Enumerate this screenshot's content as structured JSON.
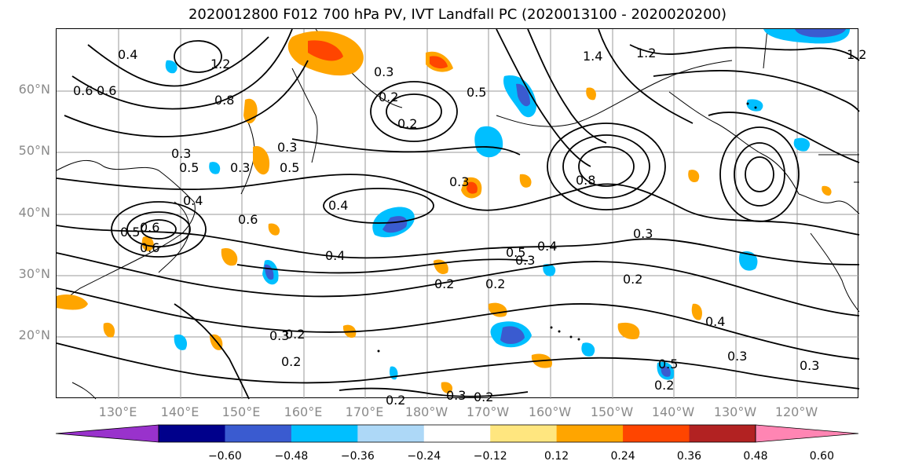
{
  "title": "2020012800 F012 700 hPa PV, IVT Landfall PC (2020013100 - 2020020200)",
  "lat_labels": [
    "60°N",
    "50°N",
    "40°N",
    "30°N",
    "20°N"
  ],
  "lon_labels": [
    "130°E",
    "140°E",
    "150°E",
    "160°E",
    "170°E",
    "180°W",
    "170°W",
    "160°W",
    "150°W",
    "140°W",
    "130°W",
    "120°W"
  ],
  "colorbar": {
    "ticks": [
      "−0.60",
      "−0.48",
      "−0.36",
      "−0.24",
      "−0.12",
      "0.12",
      "0.24",
      "0.36",
      "0.48",
      "0.60"
    ],
    "colors": [
      "#9932cc",
      "#00008b",
      "#3a5bd0",
      "#00bfff",
      "#add8f7",
      "#ffffff",
      "#ffe67f",
      "#ffa500",
      "#ff4500",
      "#b22222",
      "#ff85b3"
    ]
  },
  "contour_labels": [
    "0.4",
    "0.2",
    "0.3",
    "0.2",
    "0.3",
    "0.5",
    "1.4",
    "1.2",
    "0.6",
    "1.2",
    "0.3",
    "0.8",
    "0.6",
    "0.3",
    "0.5",
    "0.3",
    "0.5",
    "0.4",
    "0.6",
    "0.5",
    "0.6",
    "0.4",
    "0.3",
    "0.3",
    "0.4",
    "0.2",
    "0.5",
    "0.2",
    "0.2",
    "0.4",
    "0.3",
    "0.5",
    "0.2",
    "0.3",
    "0.2",
    "0.2",
    "0.3",
    "0.2",
    "0.3",
    "0.2",
    "0.6",
    "1.2",
    "0.8",
    "0.4"
  ]
}
